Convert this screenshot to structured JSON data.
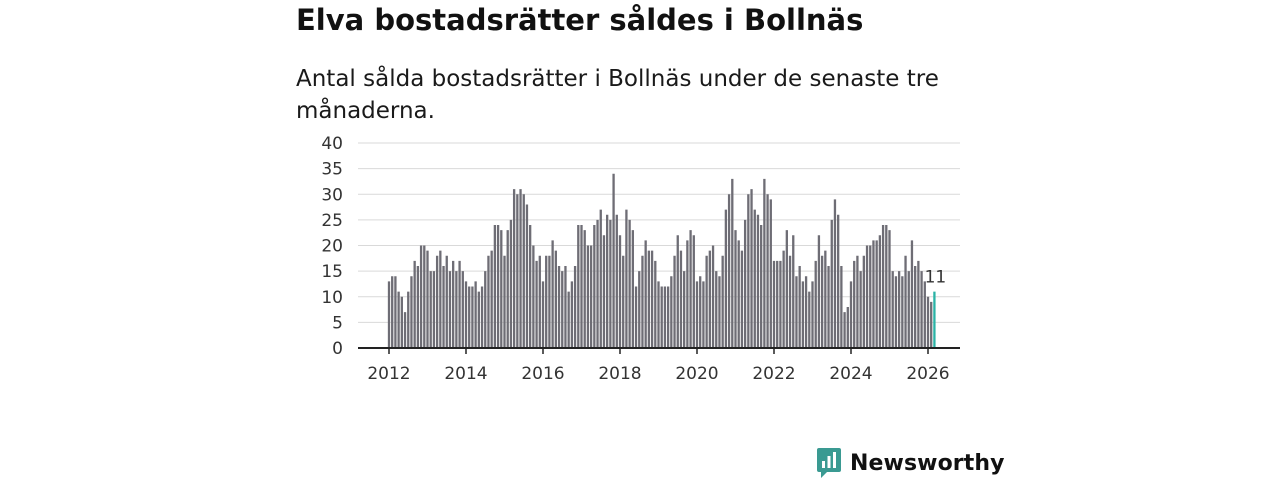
{
  "title": "Elva bostadsrätter såldes i Bollnäs",
  "subtitle": "Antal sålda bostadsrätter i Bollnäs under de senaste tre månaderna.",
  "brand": {
    "name": "Newsworthy",
    "icon": "bar-chart-speech-bubble-icon",
    "color": "#3a9a92"
  },
  "colors": {
    "bar": "#6e6d75",
    "highlight": "#2bb3a6",
    "grid": "#d9d9d9",
    "axis": "#222222",
    "text": "#333333"
  },
  "chart_data": {
    "type": "bar",
    "title": "Elva bostadsrätter såldes i Bollnäs",
    "xlabel": "",
    "ylabel": "",
    "ylim": [
      0,
      40
    ],
    "yticks": [
      0,
      5,
      10,
      15,
      20,
      25,
      30,
      35,
      40
    ],
    "xticks": [
      "2012",
      "2014",
      "2016",
      "2018",
      "2020",
      "2022",
      "2024",
      "2026"
    ],
    "start": "2012-01",
    "grid": true,
    "annotation": "11",
    "values": [
      13,
      14,
      14,
      11,
      10,
      7,
      11,
      14,
      17,
      16,
      20,
      20,
      19,
      15,
      15,
      18,
      19,
      16,
      18,
      15,
      17,
      15,
      17,
      15,
      13,
      12,
      12,
      13,
      11,
      12,
      15,
      18,
      19,
      24,
      24,
      23,
      18,
      23,
      25,
      31,
      30,
      31,
      30,
      28,
      24,
      20,
      17,
      18,
      13,
      18,
      18,
      21,
      19,
      16,
      15,
      16,
      11,
      13,
      16,
      24,
      24,
      23,
      20,
      20,
      24,
      25,
      27,
      22,
      26,
      25,
      34,
      26,
      22,
      18,
      27,
      25,
      23,
      12,
      15,
      18,
      21,
      19,
      19,
      17,
      13,
      12,
      12,
      12,
      14,
      18,
      22,
      19,
      15,
      21,
      23,
      22,
      13,
      14,
      13,
      18,
      19,
      20,
      15,
      14,
      18,
      27,
      30,
      33,
      23,
      21,
      19,
      25,
      30,
      31,
      27,
      26,
      24,
      33,
      30,
      29,
      17,
      17,
      17,
      19,
      23,
      18,
      22,
      14,
      16,
      13,
      14,
      11,
      13,
      17,
      22,
      18,
      19,
      16,
      25,
      29,
      26,
      16,
      7,
      8,
      13,
      17,
      18,
      15,
      18,
      20,
      20,
      21,
      21,
      22,
      24,
      24,
      23,
      15,
      14,
      15,
      14,
      18,
      15,
      21,
      16,
      17,
      15,
      13,
      10,
      9,
      11
    ]
  }
}
